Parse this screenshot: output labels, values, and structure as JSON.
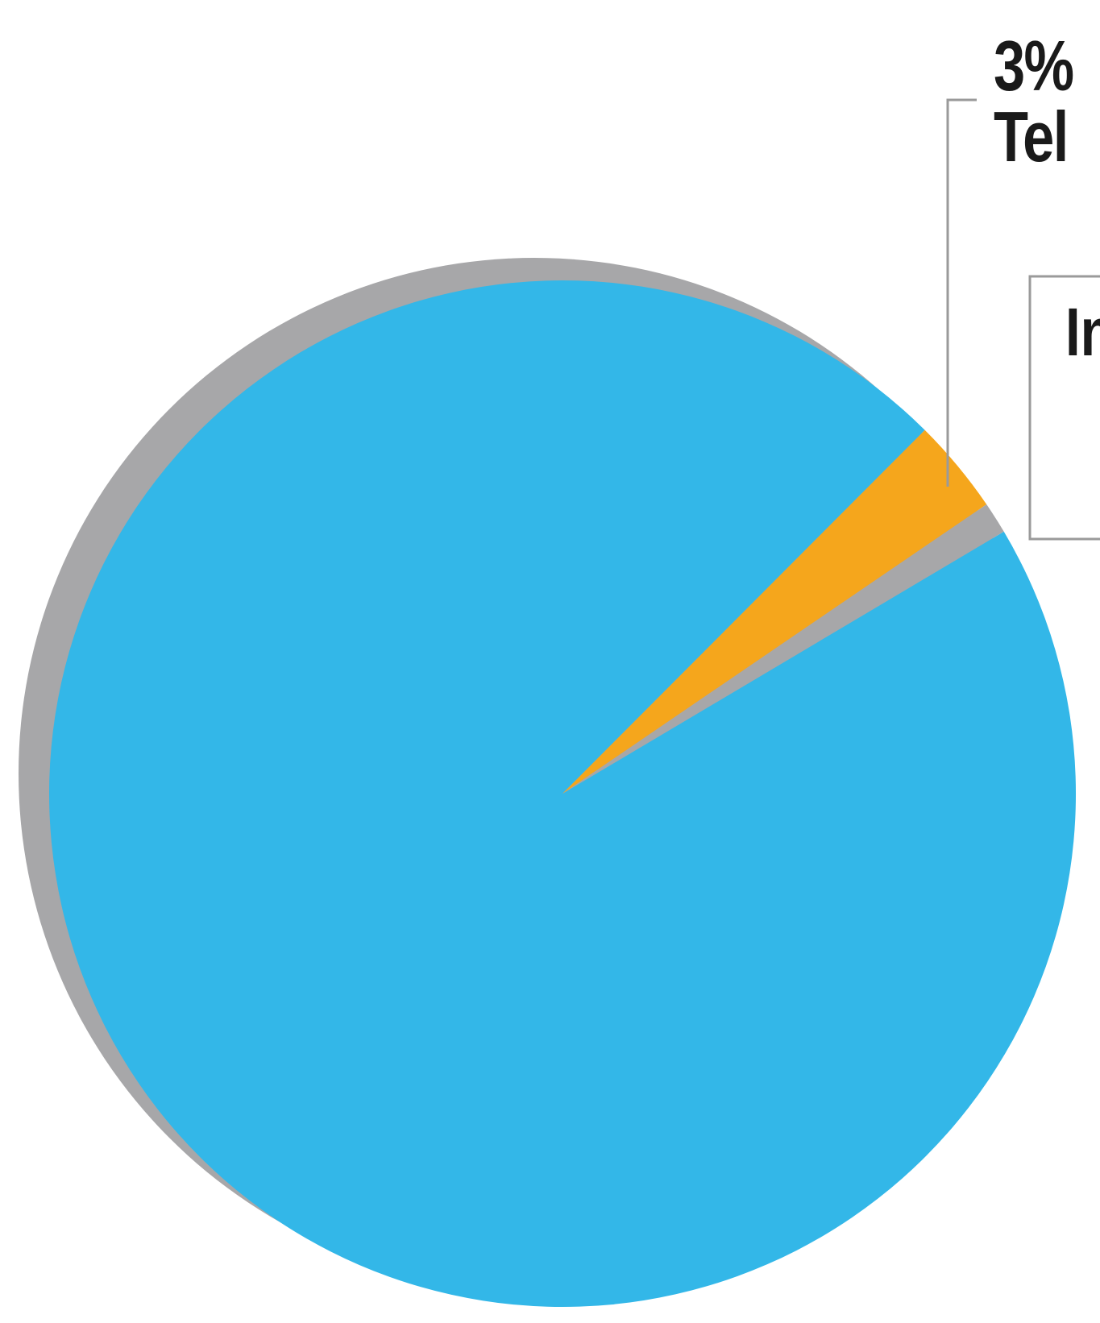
{
  "chart_data": {
    "type": "pie",
    "slices": [
      {
        "name": "",
        "value": 96,
        "color": "#33b7e8"
      },
      {
        "name": "Tel",
        "value": 3,
        "color": "#f5a61c"
      },
      {
        "name": "",
        "value": 1,
        "color": "#a7a7a9"
      }
    ],
    "labels": {
      "callout_value": "3%",
      "callout_name": "Tel",
      "box_text": "In"
    },
    "shadow_color": "#a7a7a9",
    "leader_color": "#9a9a9a",
    "legend": "right"
  }
}
